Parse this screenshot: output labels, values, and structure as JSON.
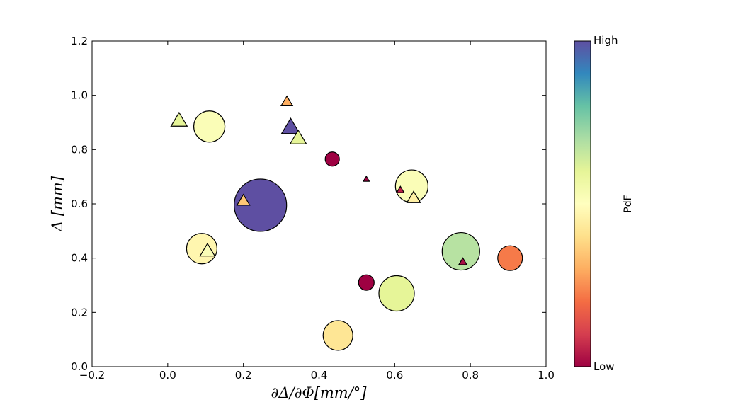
{
  "chart_data": {
    "type": "scatter",
    "xlabel": "∂Δ/∂Φ[mm/°]",
    "ylabel": "Δ [mm]",
    "xlim": [
      -0.2,
      1.0
    ],
    "ylim": [
      0.0,
      1.2
    ],
    "xticks": [
      "−0.2",
      "0.0",
      "0.2",
      "0.4",
      "0.6",
      "0.8",
      "1.0"
    ],
    "yticks": [
      "0.0",
      "0.2",
      "0.4",
      "0.6",
      "0.8",
      "1.0",
      "1.2"
    ],
    "grid": false,
    "colorbar": {
      "title": "PdF",
      "high_label": "High",
      "low_label": "Low",
      "colormap": "Spectral",
      "colors": [
        "#9e0142",
        "#d53e4f",
        "#f46d43",
        "#fdae61",
        "#fee08b",
        "#ffffbf",
        "#e6f598",
        "#abdda4",
        "#66c2a5",
        "#3288bd",
        "#5e4fa2"
      ]
    },
    "series": [
      {
        "marker": "circle",
        "points": [
          {
            "x": 0.11,
            "y": 0.885,
            "size": 44,
            "pdf": 0.52
          },
          {
            "x": 0.245,
            "y": 0.595,
            "size": 74,
            "pdf": 1.0
          },
          {
            "x": 0.09,
            "y": 0.435,
            "size": 43,
            "pdf": 0.47
          },
          {
            "x": 0.435,
            "y": 0.765,
            "size": 20,
            "pdf": 0.0
          },
          {
            "x": 0.645,
            "y": 0.665,
            "size": 46,
            "pdf": 0.52
          },
          {
            "x": 0.525,
            "y": 0.31,
            "size": 22,
            "pdf": 0.0
          },
          {
            "x": 0.605,
            "y": 0.27,
            "size": 50,
            "pdf": 0.6
          },
          {
            "x": 0.45,
            "y": 0.115,
            "size": 42,
            "pdf": 0.42
          },
          {
            "x": 0.775,
            "y": 0.425,
            "size": 53,
            "pdf": 0.68
          },
          {
            "x": 0.905,
            "y": 0.4,
            "size": 35,
            "pdf": 0.22
          }
        ]
      },
      {
        "marker": "triangle",
        "points": [
          {
            "x": 0.03,
            "y": 0.905,
            "size": 24,
            "pdf": 0.6
          },
          {
            "x": 0.315,
            "y": 0.975,
            "size": 17,
            "pdf": 0.3
          },
          {
            "x": 0.325,
            "y": 0.88,
            "size": 27,
            "pdf": 1.0
          },
          {
            "x": 0.345,
            "y": 0.84,
            "size": 24,
            "pdf": 0.6
          },
          {
            "x": 0.2,
            "y": 0.61,
            "size": 19,
            "pdf": 0.35
          },
          {
            "x": 0.105,
            "y": 0.425,
            "size": 22,
            "pdf": 0.52
          },
          {
            "x": 0.525,
            "y": 0.69,
            "size": 9,
            "pdf": 0.0
          },
          {
            "x": 0.615,
            "y": 0.65,
            "size": 11,
            "pdf": 0.05
          },
          {
            "x": 0.65,
            "y": 0.62,
            "size": 20,
            "pdf": 0.45
          },
          {
            "x": 0.78,
            "y": 0.385,
            "size": 12,
            "pdf": 0.02
          }
        ]
      }
    ]
  }
}
